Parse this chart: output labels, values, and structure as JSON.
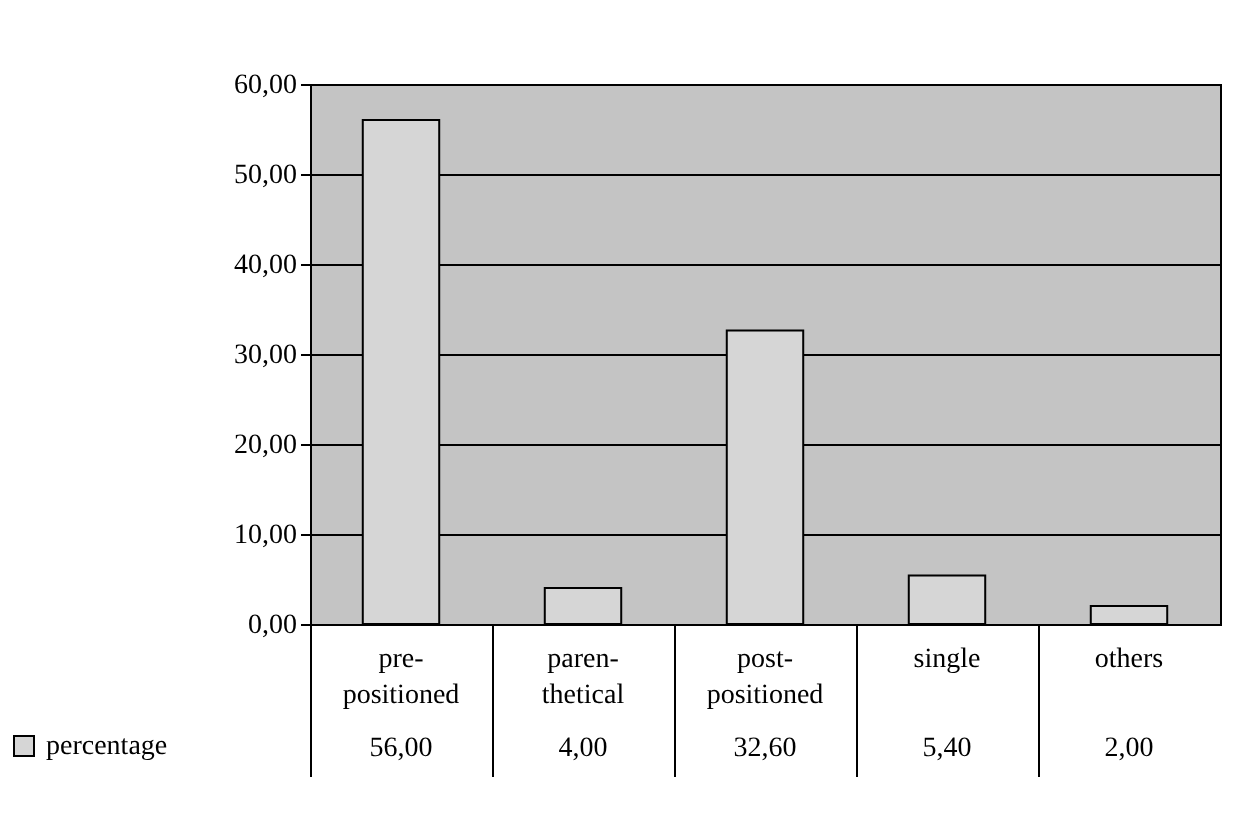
{
  "chart_data": {
    "type": "bar",
    "categories": [
      "pre-positioned",
      "paren-thetical",
      "post-positioned",
      "single",
      "others"
    ],
    "series": [
      {
        "name": "percentage",
        "color": "#d6d6d6",
        "values": [
          56.0,
          4.0,
          32.6,
          5.4,
          2.0
        ]
      }
    ],
    "ylim": [
      0,
      60
    ],
    "yticks": [
      {
        "value": 0,
        "label": "0,00"
      },
      {
        "value": 10,
        "label": "10,00"
      },
      {
        "value": 20,
        "label": "20,00"
      },
      {
        "value": 30,
        "label": "30,00"
      },
      {
        "value": 40,
        "label": "40,00"
      },
      {
        "value": 50,
        "label": "50,00"
      },
      {
        "value": 60,
        "label": "60,00"
      }
    ],
    "value_labels": [
      "56,00",
      "4,00",
      "32,60",
      "5,40",
      "2,00"
    ],
    "grid": "y",
    "legend": "bottom left"
  }
}
